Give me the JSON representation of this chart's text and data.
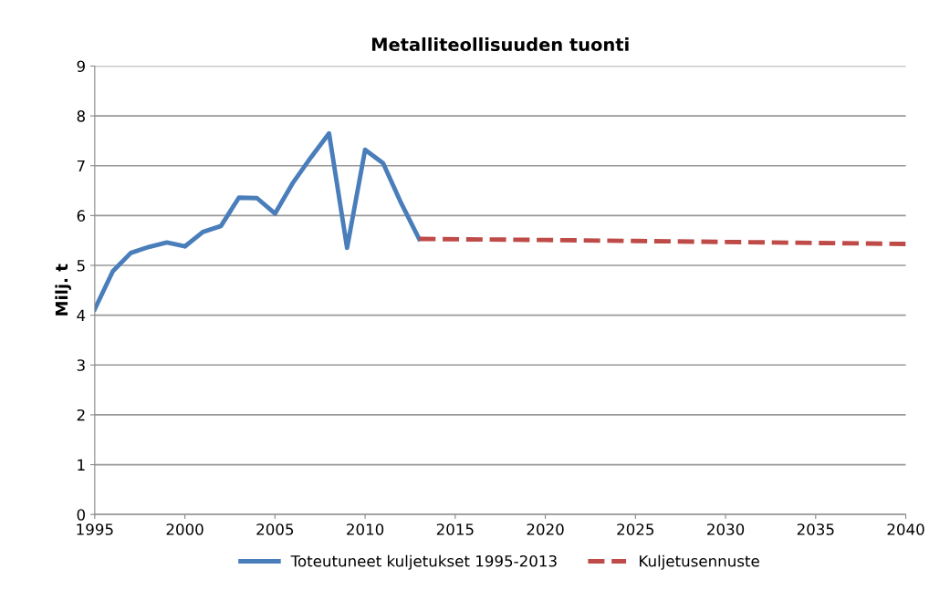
{
  "chart_data": {
    "type": "line",
    "title": "Metalliteollisuuden tuonti",
    "ylabel": "Milj. t",
    "xlim": [
      1995,
      2040
    ],
    "xticks": [
      1995,
      2000,
      2005,
      2010,
      2015,
      2020,
      2025,
      2030,
      2035,
      2040
    ],
    "ylim": [
      0,
      9
    ],
    "yticks": [
      0,
      1,
      2,
      3,
      4,
      5,
      6,
      7,
      8,
      9
    ],
    "grid": "y",
    "legend": "bottom",
    "series": [
      {
        "name": "Toteutuneet kuljetukset 1995-2013",
        "color": "#4a7ebb",
        "line_style": "solid",
        "x": [
          1995,
          1996,
          1997,
          1998,
          1999,
          2000,
          2001,
          2002,
          2003,
          2004,
          2005,
          2006,
          2007,
          2008,
          2009,
          2010,
          2011,
          2012,
          2013
        ],
        "values": [
          4.12,
          4.88,
          5.25,
          5.37,
          5.46,
          5.38,
          5.67,
          5.79,
          6.36,
          6.35,
          6.04,
          6.66,
          7.17,
          7.65,
          5.35,
          7.32,
          7.05,
          6.25,
          5.53
        ]
      },
      {
        "name": "Kuljetusennuste",
        "color": "#be4b48",
        "line_style": "dashed",
        "x": [
          2013,
          2020,
          2025,
          2030,
          2035,
          2040
        ],
        "values": [
          5.53,
          5.51,
          5.49,
          5.47,
          5.45,
          5.43
        ]
      }
    ]
  }
}
